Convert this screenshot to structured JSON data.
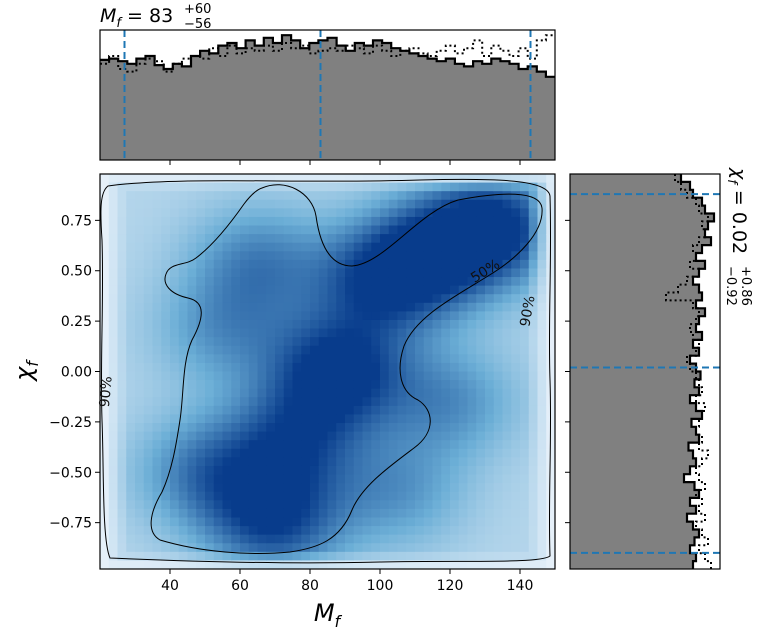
{
  "chart_data": [
    {
      "type": "heatmap",
      "panel": "joint",
      "xlabel": "M",
      "xlabel_sub": "f",
      "ylabel": "χ",
      "ylabel_sub": "f",
      "xlim": [
        20,
        150
      ],
      "ylim": [
        -0.98,
        0.98
      ],
      "xticks": [
        40,
        60,
        80,
        100,
        120,
        140
      ],
      "yticks": [
        -0.75,
        -0.5,
        -0.25,
        0.0,
        0.25,
        0.5,
        0.75
      ],
      "ytick_labels": [
        "−0.75",
        "−0.50",
        "−0.25",
        "0.00",
        "0.25",
        "0.50",
        "0.75"
      ],
      "density_peaks": [
        {
          "x": 88,
          "y": 0.0,
          "w": 1.0
        },
        {
          "x": 133,
          "y": 0.72,
          "w": 0.95
        },
        {
          "x": 115,
          "y": 0.58,
          "w": 0.8
        },
        {
          "x": 100,
          "y": 0.45,
          "w": 0.75
        },
        {
          "x": 70,
          "y": -0.75,
          "w": 0.85
        },
        {
          "x": 75,
          "y": -0.35,
          "w": 0.7
        },
        {
          "x": 50,
          "y": -0.5,
          "w": 0.6
        },
        {
          "x": 65,
          "y": 0.55,
          "w": 0.55
        },
        {
          "x": 55,
          "y": 0.2,
          "w": 0.45
        },
        {
          "x": 120,
          "y": -0.15,
          "w": 0.5
        },
        {
          "x": 105,
          "y": -0.6,
          "w": 0.45
        }
      ],
      "contours": [
        {
          "label": "50%",
          "label_pos": {
            "x": 130,
            "y": 0.5
          }
        },
        {
          "label": "90%",
          "label_pos": {
            "x": 142,
            "y": 0.3
          }
        },
        {
          "label": "90%",
          "label_pos": {
            "x": 21.5,
            "y": -0.1
          }
        }
      ]
    },
    {
      "type": "histogram",
      "panel": "top-marginal",
      "variable": "M_f",
      "title_main": "M",
      "title_sub": "f",
      "title_eq": " = 83",
      "title_plus": "+60",
      "title_minus": "−56",
      "xlim": [
        20,
        150
      ],
      "bin_edges_start": 20,
      "bin_width": 2.6,
      "counts": [
        0.77,
        0.78,
        0.76,
        0.74,
        0.78,
        0.8,
        0.73,
        0.7,
        0.74,
        0.72,
        0.8,
        0.84,
        0.82,
        0.88,
        0.9,
        0.86,
        0.92,
        0.88,
        0.94,
        0.9,
        0.96,
        0.92,
        0.86,
        0.9,
        0.92,
        0.94,
        0.88,
        0.84,
        0.9,
        0.88,
        0.92,
        0.9,
        0.86,
        0.84,
        0.82,
        0.8,
        0.78,
        0.76,
        0.78,
        0.74,
        0.72,
        0.76,
        0.74,
        0.78,
        0.76,
        0.74,
        0.7,
        0.72,
        0.68,
        0.64
      ],
      "counts_dotted": [
        0.74,
        0.8,
        0.7,
        0.68,
        0.74,
        0.78,
        0.76,
        0.68,
        0.74,
        0.78,
        0.8,
        0.78,
        0.86,
        0.8,
        0.88,
        0.82,
        0.86,
        0.84,
        0.88,
        0.84,
        0.9,
        0.86,
        0.88,
        0.82,
        0.84,
        0.86,
        0.84,
        0.88,
        0.86,
        0.82,
        0.88,
        0.84,
        0.8,
        0.84,
        0.86,
        0.82,
        0.8,
        0.84,
        0.88,
        0.82,
        0.86,
        0.92,
        0.8,
        0.88,
        0.84,
        0.8,
        0.86,
        0.78,
        0.92,
        0.96
      ],
      "quantile_lines": [
        27,
        83,
        143
      ]
    },
    {
      "type": "histogram",
      "panel": "right-marginal",
      "variable": "chi_f",
      "title_main": "χ",
      "title_sub": "f",
      "title_eq": " = 0.02",
      "title_plus": "+0.86",
      "title_minus": "−0.92",
      "ylim": [
        -0.98,
        0.98
      ],
      "bin_edges_start": -0.98,
      "bin_width": 0.0392,
      "counts": [
        0.82,
        0.84,
        0.8,
        0.83,
        0.86,
        0.82,
        0.78,
        0.84,
        0.8,
        0.86,
        0.83,
        0.76,
        0.8,
        0.84,
        0.82,
        0.79,
        0.86,
        0.84,
        0.81,
        0.88,
        0.84,
        0.8,
        0.86,
        0.83,
        0.87,
        0.84,
        0.8,
        0.86,
        0.82,
        0.88,
        0.84,
        0.86,
        0.9,
        0.84,
        0.88,
        0.86,
        0.82,
        0.86,
        0.9,
        0.84,
        0.88,
        0.94,
        0.9,
        0.92,
        0.96,
        0.9,
        0.88,
        0.82,
        0.8,
        0.74
      ],
      "counts_dotted": [
        0.94,
        0.9,
        0.86,
        0.92,
        0.88,
        0.84,
        0.9,
        0.86,
        0.88,
        0.84,
        0.9,
        0.86,
        0.84,
        0.88,
        0.92,
        0.86,
        0.88,
        0.84,
        0.86,
        0.88,
        0.9,
        0.84,
        0.88,
        0.86,
        0.84,
        0.8,
        0.78,
        0.84,
        0.86,
        0.82,
        0.8,
        0.84,
        0.86,
        0.82,
        0.64,
        0.72,
        0.78,
        0.86,
        0.8,
        0.84,
        0.82,
        0.86,
        0.9,
        0.88,
        0.92,
        0.86,
        0.84,
        0.78,
        0.74,
        0.7
      ],
      "quantile_lines": [
        -0.9,
        0.02,
        0.88
      ]
    }
  ]
}
